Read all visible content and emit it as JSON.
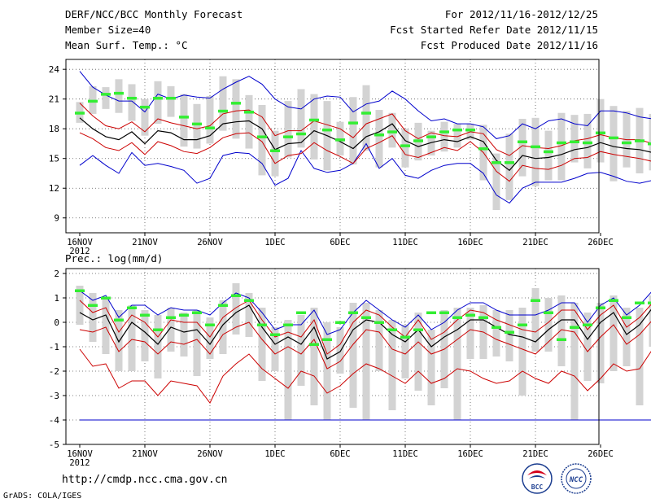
{
  "header": {
    "title": "DERF/NCC/BCC Monthly Forecast",
    "member_size": "Member Size=40",
    "variable": "Mean Surf. Temp.: °C",
    "period": "For 2012/11/16-2012/12/25",
    "refer_date": "Fcst Started Refer Date 2012/11/15",
    "produced_date": "Fcst Produced Date 2012/11/16"
  },
  "footer": {
    "url": "http://cmdp.ncc.cma.gov.cn",
    "grads": "GrADS: COLA/IGES",
    "logo1": "BCC",
    "logo2": "NCC"
  },
  "colors": {
    "ensemble_mean": "#000000",
    "spread_inner": "#cc0000",
    "spread_outer": "#0000cc",
    "member_box": "#d3d3d3",
    "marker": "#33ee33",
    "grid": "#555555"
  },
  "chart_data": [
    {
      "type": "line",
      "title": "Mean Surf. Temp.: °C",
      "ylim": [
        7.5,
        25
      ],
      "yticks": [
        9,
        12,
        15,
        18,
        21,
        24
      ],
      "x_tick_labels": [
        "16NOV",
        "21NOV",
        "26NOV",
        "1DEC",
        "6DEC",
        "11DEC",
        "16DEC",
        "21DEC",
        "26DEC"
      ],
      "x_sub_label": "2012",
      "grid": true,
      "series": [
        {
          "name": "upper_outer",
          "values": [
            23.8,
            22.2,
            21.4,
            20.8,
            20.8,
            19.7,
            21.5,
            21.0,
            21.4,
            21.2,
            21.1,
            22.0,
            22.7,
            23.3,
            22.5,
            21.0,
            20.2,
            20.0,
            21.0,
            21.3,
            21.2,
            19.7,
            20.5,
            20.8,
            21.8,
            21.0,
            19.8,
            18.8,
            19.0,
            18.5,
            18.5,
            18.2,
            17.0,
            17.3,
            18.5,
            18.0,
            18.8,
            19.0,
            18.5,
            18.3,
            19.8,
            19.8,
            19.6,
            19.2,
            19.0
          ]
        },
        {
          "name": "upper_inner",
          "values": [
            20.6,
            19.3,
            18.3,
            18.0,
            18.7,
            17.7,
            19.0,
            18.6,
            18.3,
            18.0,
            18.3,
            19.5,
            19.8,
            19.9,
            19.2,
            17.3,
            17.8,
            17.8,
            18.8,
            18.4,
            18.0,
            17.1,
            18.5,
            19.0,
            19.5,
            17.8,
            17.0,
            17.6,
            17.3,
            17.2,
            17.7,
            17.5,
            15.9,
            15.3,
            16.3,
            16.1,
            16.0,
            16.3,
            16.8,
            17.0,
            17.4,
            17.1,
            16.9,
            16.9,
            16.5
          ]
        },
        {
          "name": "ensemble_mean",
          "values": [
            19.1,
            18.0,
            17.2,
            16.9,
            17.7,
            16.5,
            17.8,
            17.6,
            16.9,
            16.9,
            17.3,
            18.5,
            18.7,
            18.8,
            18.0,
            15.9,
            16.5,
            16.6,
            17.8,
            17.3,
            16.7,
            16.0,
            17.2,
            17.7,
            18.5,
            16.8,
            16.2,
            16.6,
            16.9,
            16.7,
            17.2,
            16.7,
            14.8,
            13.8,
            15.3,
            15.0,
            15.1,
            15.4,
            15.9,
            16.1,
            16.6,
            16.2,
            16.0,
            15.9,
            15.6
          ]
        },
        {
          "name": "lower_inner",
          "values": [
            17.6,
            17.0,
            16.1,
            15.8,
            16.6,
            15.4,
            16.7,
            16.3,
            15.7,
            15.5,
            16.1,
            17.1,
            17.5,
            17.6,
            16.7,
            14.5,
            15.3,
            15.5,
            16.6,
            15.8,
            15.2,
            14.5,
            16.0,
            16.6,
            17.3,
            15.4,
            15.1,
            15.6,
            16.1,
            15.8,
            16.7,
            15.6,
            13.7,
            12.7,
            14.3,
            14.0,
            13.9,
            14.3,
            15.0,
            15.1,
            15.7,
            15.4,
            15.2,
            15.0,
            14.7
          ]
        },
        {
          "name": "lower_outer",
          "values": [
            14.3,
            15.3,
            14.3,
            13.5,
            15.6,
            14.3,
            14.5,
            14.2,
            13.8,
            12.5,
            13.0,
            15.3,
            15.6,
            15.5,
            14.5,
            12.3,
            13.0,
            15.8,
            14.0,
            13.6,
            13.8,
            14.5,
            16.5,
            14.0,
            15.0,
            13.3,
            13.0,
            13.8,
            14.3,
            14.5,
            14.5,
            13.5,
            11.3,
            10.5,
            12.0,
            12.6,
            12.6,
            12.6,
            13.0,
            13.5,
            13.6,
            13.2,
            12.7,
            12.5,
            12.8
          ]
        },
        {
          "name": "markers",
          "values": [
            19.6,
            20.8,
            21.5,
            21.6,
            21.1,
            20.2,
            21.1,
            21.1,
            19.2,
            18.5,
            18.1,
            19.8,
            20.6,
            19.7,
            17.2,
            15.8,
            17.2,
            17.5,
            18.9,
            17.9,
            16.9,
            18.6,
            19.6,
            17.4,
            17.7,
            16.3,
            16.8,
            17.2,
            17.7,
            17.9,
            17.9,
            16.0,
            14.6,
            14.6,
            16.7,
            16.2,
            15.7,
            16.6,
            16.7,
            16.6,
            17.6,
            17.1,
            16.6,
            16.8,
            16.5
          ]
        },
        {
          "name": "box_top",
          "values": [
            20.7,
            22.3,
            22.2,
            23.0,
            22.5,
            21.0,
            22.8,
            22.3,
            21.5,
            20.5,
            21.3,
            23.3,
            23.0,
            21.4,
            20.4,
            17.8,
            20.8,
            22.0,
            21.5,
            20.8,
            18.7,
            21.2,
            22.4,
            19.9,
            19.6,
            18.0,
            18.6,
            17.8,
            18.7,
            18.5,
            18.5,
            18.4,
            15.5,
            17.5,
            19.0,
            19.1,
            17.8,
            19.6,
            19.4,
            19.5,
            21.0,
            20.3,
            19.8,
            20.1,
            19.5
          ]
        },
        {
          "name": "box_bottom",
          "values": [
            18.6,
            19.5,
            20.0,
            19.6,
            18.8,
            17.3,
            18.5,
            19.2,
            16.2,
            16.0,
            16.5,
            17.8,
            17.0,
            16.0,
            13.3,
            13.2,
            15.1,
            16.1,
            14.9,
            13.8,
            15.3,
            14.4,
            15.8,
            14.1,
            16.1,
            14.1,
            14.8,
            15.3,
            15.7,
            16.1,
            16.9,
            12.8,
            9.8,
            10.8,
            13.2,
            12.2,
            12.8,
            12.8,
            14.6,
            14.0,
            14.6,
            12.7,
            14.1,
            13.5,
            13.8
          ]
        }
      ]
    },
    {
      "type": "line",
      "title": "Prec.: log(mm/d)",
      "ylim": [
        -5,
        2.2
      ],
      "yticks": [
        -5,
        -4,
        -3,
        -2,
        -1,
        0,
        1,
        2
      ],
      "x_tick_labels": [
        "16NOV",
        "21NOV",
        "26NOV",
        "1DEC",
        "6DEC",
        "11DEC",
        "16DEC",
        "21DEC",
        "26DEC"
      ],
      "x_sub_label": "2012",
      "grid": true,
      "series": [
        {
          "name": "upper_outer",
          "values": [
            1.3,
            0.9,
            1.1,
            0.2,
            0.7,
            0.7,
            0.3,
            0.6,
            0.5,
            0.5,
            0.3,
            0.8,
            1.2,
            1.0,
            0.4,
            -0.3,
            -0.1,
            -0.1,
            0.5,
            -0.5,
            -0.3,
            0.4,
            0.9,
            0.5,
            0.1,
            -0.2,
            0.3,
            -0.3,
            0.0,
            0.5,
            0.8,
            0.8,
            0.5,
            0.3,
            0.3,
            0.3,
            0.5,
            0.8,
            0.8,
            0.0,
            0.7,
            1.0,
            0.3,
            0.7,
            1.3
          ]
        },
        {
          "name": "upper_inner",
          "values": [
            0.9,
            0.4,
            0.6,
            -0.4,
            0.3,
            0.0,
            -0.6,
            0.1,
            0.0,
            0.0,
            -0.6,
            0.2,
            0.6,
            0.9,
            0.1,
            -0.6,
            -0.4,
            -0.6,
            0.1,
            -1.3,
            -0.9,
            0.0,
            0.5,
            0.3,
            -0.2,
            -0.6,
            0.1,
            -0.7,
            -0.4,
            0.1,
            0.5,
            0.4,
            0.1,
            -0.1,
            -0.3,
            -0.4,
            0.0,
            0.5,
            0.5,
            -0.3,
            0.3,
            0.7,
            -0.2,
            0.2,
            0.8
          ]
        },
        {
          "name": "ensemble_mean",
          "values": [
            0.4,
            0.1,
            0.3,
            -0.8,
            0.0,
            -0.4,
            -0.9,
            -0.2,
            -0.4,
            -0.3,
            -0.9,
            -0.1,
            0.4,
            0.7,
            -0.2,
            -0.9,
            -0.6,
            -0.9,
            -0.2,
            -1.5,
            -1.2,
            -0.3,
            0.1,
            0.0,
            -0.5,
            -0.8,
            -0.3,
            -1.0,
            -0.6,
            -0.3,
            0.1,
            0.1,
            -0.2,
            -0.5,
            -0.6,
            -0.8,
            -0.3,
            0.1,
            0.1,
            -0.7,
            0.0,
            0.4,
            -0.5,
            -0.1,
            0.6
          ]
        },
        {
          "name": "lower_inner",
          "values": [
            -0.3,
            -0.4,
            -0.2,
            -1.2,
            -0.7,
            -0.8,
            -1.3,
            -0.8,
            -0.9,
            -0.7,
            -1.3,
            -0.5,
            -0.2,
            0.0,
            -0.7,
            -1.3,
            -1.0,
            -1.3,
            -0.7,
            -1.9,
            -1.6,
            -0.9,
            -0.3,
            -0.4,
            -1.1,
            -1.3,
            -0.8,
            -1.3,
            -1.1,
            -0.7,
            -0.3,
            -0.4,
            -0.7,
            -0.9,
            -1.1,
            -1.3,
            -0.8,
            -0.3,
            -0.4,
            -1.2,
            -0.6,
            -0.1,
            -0.9,
            -0.5,
            0.1
          ]
        },
        {
          "name": "lower_outer",
          "values": [
            -1.1,
            -1.8,
            -1.7,
            -2.7,
            -2.4,
            -2.4,
            -3.0,
            -2.4,
            -2.5,
            -2.6,
            -3.3,
            -2.2,
            -1.7,
            -1.3,
            -1.9,
            -2.3,
            -2.7,
            -2.0,
            -2.2,
            -2.9,
            -2.6,
            -2.1,
            -1.7,
            -1.9,
            -2.2,
            -2.5,
            -2.0,
            -2.5,
            -2.3,
            -1.9,
            -2.0,
            -2.3,
            -2.5,
            -2.4,
            -2.0,
            -2.3,
            -2.5,
            -2.0,
            -2.2,
            -2.8,
            -2.3,
            -1.7,
            -2.0,
            -1.9,
            -1.1
          ]
        },
        {
          "name": "floor_line",
          "values": [
            -4,
            -4,
            -4,
            -4,
            -4,
            -4,
            -4,
            -4,
            -4,
            -4,
            -4,
            -4,
            -4,
            -4,
            -4,
            -4,
            -4,
            -4,
            -4,
            -4,
            -4,
            -4,
            -4,
            -4,
            -4,
            -4,
            -4,
            -4,
            -4,
            -4,
            -4,
            -4,
            -4,
            -4,
            -4,
            -4,
            -4,
            -4,
            -4,
            -4,
            -4,
            -4,
            -4,
            -4,
            -4
          ]
        },
        {
          "name": "markers",
          "values": [
            1.3,
            0.7,
            1.0,
            0.1,
            0.6,
            0.3,
            -0.3,
            0.2,
            0.3,
            0.4,
            -0.1,
            0.7,
            1.1,
            0.9,
            -0.1,
            -0.5,
            -0.1,
            0.4,
            -0.9,
            -0.7,
            0.0,
            0.4,
            0.2,
            0.0,
            -0.3,
            -0.6,
            -0.3,
            0.4,
            0.4,
            0.2,
            0.3,
            0.2,
            -0.2,
            -0.4,
            -0.1,
            0.9,
            0.4,
            -0.7,
            -0.2,
            -0.1,
            0.6,
            0.9,
            0.2,
            0.8,
            0.8
          ]
        },
        {
          "name": "box_top",
          "values": [
            1.5,
            1.2,
            1.0,
            0.5,
            0.7,
            0.5,
            0.3,
            0.6,
            0.4,
            0.5,
            0.2,
            0.9,
            1.6,
            1.2,
            0.6,
            -0.2,
            0.1,
            0.3,
            0.6,
            0.0,
            -0.2,
            0.8,
            0.8,
            0.5,
            0.1,
            -0.1,
            0.4,
            -0.3,
            0.5,
            0.6,
            0.6,
            0.7,
            0.5,
            0.5,
            0.6,
            1.4,
            1.0,
            1.1,
            0.8,
            0.4,
            0.8,
            1.1,
            0.6,
            0.6,
            1.1
          ]
        },
        {
          "name": "box_bottom",
          "values": [
            -0.1,
            -0.8,
            -1.3,
            -2.0,
            -2.0,
            -1.6,
            -2.3,
            -1.2,
            -1.4,
            -2.2,
            -1.5,
            -1.3,
            -0.5,
            -0.6,
            -2.4,
            -2.0,
            -4.0,
            -2.6,
            -3.4,
            -4.0,
            -2.1,
            -3.5,
            -4.0,
            -2.0,
            -3.6,
            -2.3,
            -2.8,
            -3.4,
            -2.7,
            -4.0,
            -1.5,
            -1.5,
            -1.4,
            -1.6,
            -3.0,
            -1.2,
            -1.2,
            -1.8,
            -4.0,
            -2.4,
            -2.5,
            -2.0,
            -1.8,
            -3.4,
            -1.0
          ]
        }
      ]
    }
  ]
}
